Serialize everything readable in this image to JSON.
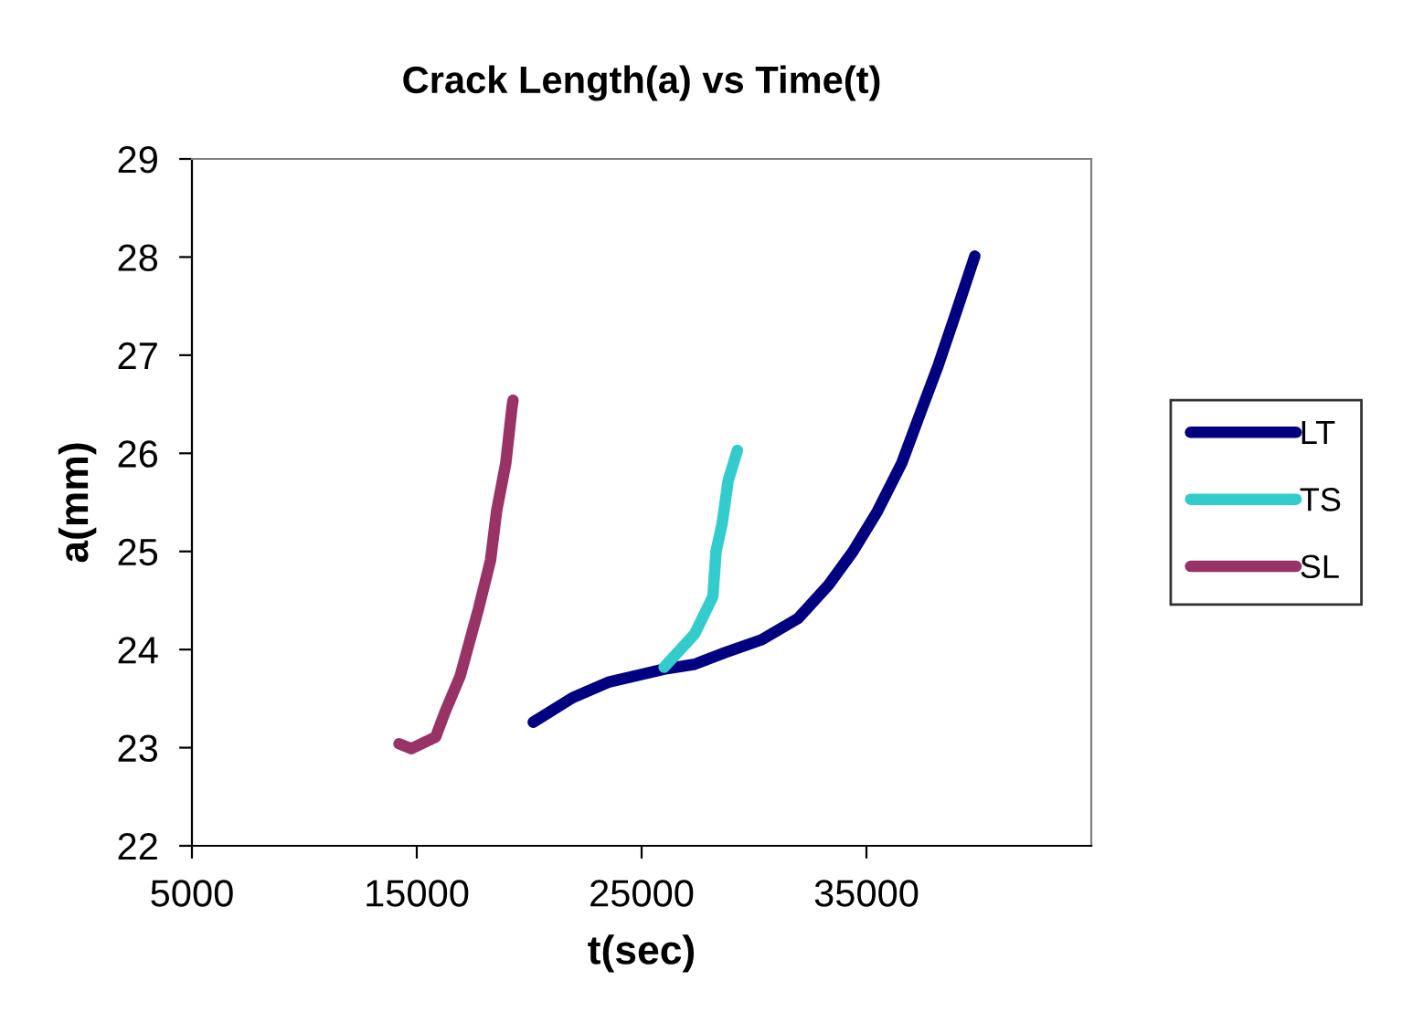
{
  "chart_data": {
    "type": "line",
    "title": "Crack Length(a) vs Time(t)",
    "xlabel": "t(sec)",
    "ylabel": "a(mm)",
    "xlim": [
      5000,
      45000
    ],
    "xticks": [
      5000,
      15000,
      25000,
      35000
    ],
    "ylim": [
      22,
      29
    ],
    "yticks": [
      22,
      23,
      24,
      25,
      26,
      27,
      28,
      29
    ],
    "grid": false,
    "legend": "right",
    "marker": "none",
    "line_style": "solid",
    "series": [
      {
        "name": "LT",
        "color": "#000080",
        "x": [
          20180,
          21940,
          23560,
          26000,
          27360,
          28720,
          30340,
          31970,
          33320,
          34400,
          35490,
          36570,
          37380,
          38200,
          39010,
          39820
        ],
        "values": [
          23.26,
          23.51,
          23.67,
          23.8,
          23.85,
          23.97,
          24.1,
          24.32,
          24.66,
          25.0,
          25.41,
          25.9,
          26.4,
          26.9,
          27.45,
          28.01
        ]
      },
      {
        "name": "TS",
        "color": "#33cccc",
        "x": [
          26000,
          27360,
          28170,
          28310,
          28580,
          28850,
          29260
        ],
        "values": [
          23.82,
          24.16,
          24.54,
          25.0,
          25.28,
          25.72,
          26.03
        ]
      },
      {
        "name": "SL",
        "color": "#993366",
        "x": [
          14210,
          14760,
          15840,
          16250,
          16930,
          17740,
          18280,
          18550,
          18960,
          19230,
          19280
        ],
        "values": [
          23.04,
          22.99,
          23.11,
          23.36,
          23.73,
          24.41,
          24.91,
          25.41,
          25.9,
          26.46,
          26.54
        ]
      }
    ]
  }
}
